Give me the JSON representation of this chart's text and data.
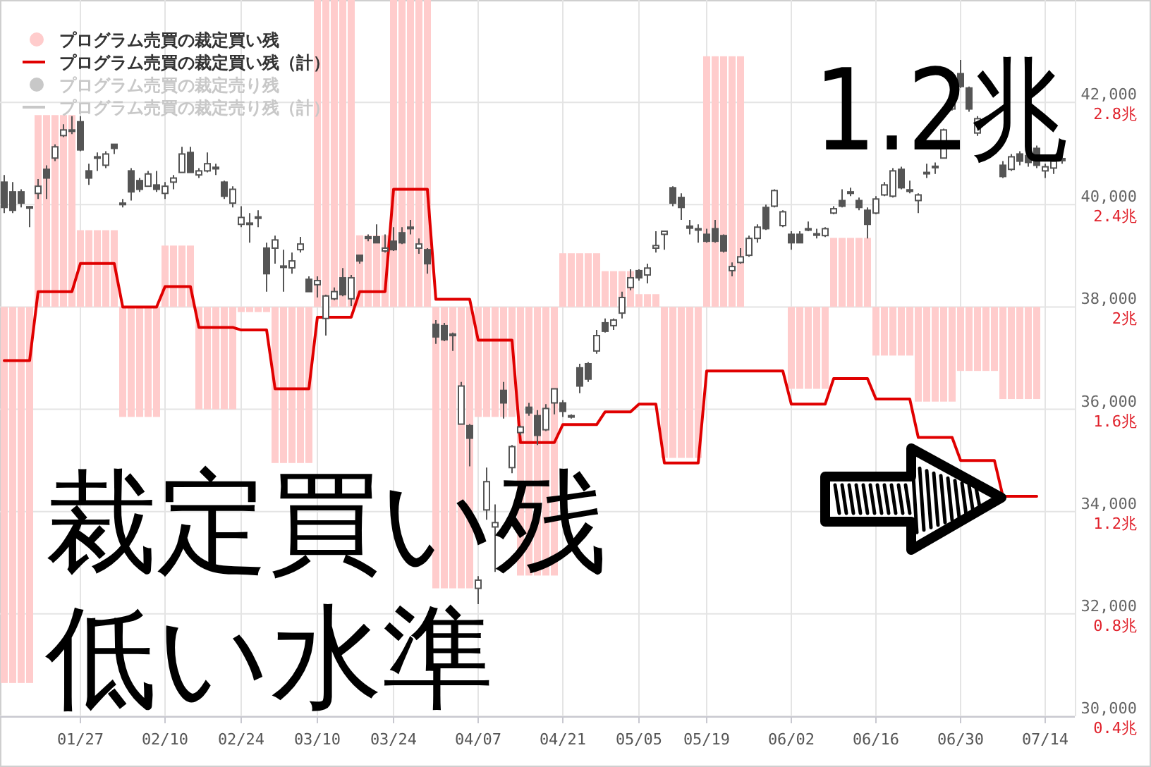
{
  "chart_data": {
    "type": "candlestick",
    "categories": [
      null,
      null,
      null,
      null,
      null,
      null,
      null,
      null,
      null,
      "01/27",
      null,
      null,
      null,
      null,
      null,
      null,
      null,
      null,
      null,
      "02/10",
      null,
      null,
      null,
      null,
      null,
      null,
      null,
      null,
      "02/24",
      null,
      null,
      null,
      null,
      null,
      null,
      null,
      null,
      "03/10",
      null,
      null,
      null,
      null,
      null,
      null,
      null,
      null,
      "03/24",
      null,
      null,
      null,
      null,
      null,
      null,
      null,
      null,
      null,
      "04/07",
      null,
      null,
      null,
      null,
      null,
      null,
      null,
      null,
      null,
      "04/21",
      null,
      null,
      null,
      null,
      null,
      null,
      null,
      null,
      "05/05",
      null,
      null,
      null,
      null,
      null,
      null,
      null,
      "05/19",
      null,
      null,
      null,
      null,
      null,
      null,
      null,
      null,
      null,
      "06/02",
      null,
      null,
      null,
      null,
      null,
      null,
      null,
      null,
      null,
      "06/16",
      null,
      null,
      null,
      null,
      null,
      null,
      null,
      null,
      null,
      "06/30",
      null,
      null,
      null,
      null,
      null,
      null,
      null,
      null,
      null,
      "07/14",
      null,
      null
    ],
    "ohlc": [
      [
        40440,
        40580,
        39835,
        39945
      ],
      [
        40250,
        40440,
        39835,
        39890
      ],
      [
        40250,
        40300,
        39945,
        40030
      ],
      [
        39960,
        39970,
        39560,
        39945
      ],
      [
        40220,
        40500,
        40110,
        40360
      ],
      [
        40690,
        40770,
        40110,
        40520
      ],
      [
        40910,
        41180,
        40850,
        41130
      ],
      [
        41350,
        41570,
        41320,
        41460
      ],
      [
        41460,
        41730,
        41380,
        41440
      ],
      [
        41620,
        41730,
        41045,
        41070
      ],
      [
        40660,
        40800,
        40385,
        40520
      ],
      [
        40920,
        41020,
        40660,
        40935
      ],
      [
        40770,
        41045,
        40715,
        40990
      ],
      [
        41180,
        41180,
        40990,
        41100
      ],
      [
        40030,
        40110,
        39945,
        40000
      ],
      [
        40660,
        40715,
        40080,
        40250
      ],
      [
        40470,
        40520,
        40250,
        40300
      ],
      [
        40360,
        40660,
        40360,
        40600
      ],
      [
        40385,
        40660,
        40250,
        40300
      ],
      [
        40220,
        40440,
        40110,
        40360
      ],
      [
        40440,
        40580,
        40300,
        40520
      ],
      [
        40630,
        41130,
        40630,
        40990
      ],
      [
        41020,
        41130,
        40630,
        40630
      ],
      [
        40580,
        40715,
        40520,
        40660
      ],
      [
        40660,
        41020,
        40630,
        40800
      ],
      [
        40730,
        40800,
        40580,
        40700
      ],
      [
        40440,
        40470,
        40110,
        40165
      ],
      [
        40030,
        40360,
        39945,
        40300
      ],
      [
        39615,
        39970,
        39560,
        39750
      ],
      [
        39615,
        39835,
        39255,
        39640
      ],
      [
        39760,
        39890,
        39560,
        39740
      ],
      [
        39150,
        39255,
        38300,
        38650
      ],
      [
        39150,
        39395,
        38845,
        39310
      ],
      [
        38790,
        39120,
        38300,
        38800
      ],
      [
        38765,
        39065,
        38650,
        38900
      ],
      [
        39120,
        39370,
        39065,
        39230
      ],
      [
        38540,
        38600,
        38300,
        38300
      ],
      [
        38435,
        38600,
        38185,
        38515
      ],
      [
        37775,
        38240,
        37440,
        38215
      ],
      [
        38160,
        38380,
        38130,
        38300
      ],
      [
        38570,
        38760,
        38210,
        38240
      ],
      [
        38160,
        38625,
        38020,
        38570
      ],
      [
        39010,
        39010,
        38845,
        38900
      ],
      [
        39370,
        39420,
        39285,
        39340
      ],
      [
        39370,
        39615,
        39255,
        39255
      ],
      [
        39095,
        39420,
        39065,
        39150
      ],
      [
        39285,
        39560,
        39095,
        39120
      ],
      [
        39450,
        39560,
        39230,
        39255
      ],
      [
        39560,
        39700,
        39420,
        39530
      ],
      [
        39150,
        39340,
        39040,
        39230
      ],
      [
        39120,
        39150,
        38650,
        38845
      ],
      [
        37660,
        37745,
        37280,
        37415
      ],
      [
        37635,
        37690,
        37330,
        37360
      ],
      [
        37470,
        37500,
        37140,
        37440
      ],
      [
        35710,
        36535,
        35710,
        36455
      ],
      [
        35680,
        35710,
        34885,
        35435
      ],
      [
        32500,
        32740,
        32190,
        32660
      ],
      [
        34033,
        34860,
        33840,
        34585
      ],
      [
        33700,
        34140,
        32820,
        33785
      ],
      [
        36370,
        36535,
        35820,
        36125
      ],
      [
        34860,
        35300,
        34750,
        35270
      ],
      [
        35545,
        35680,
        35490,
        35655
      ],
      [
        36040,
        36125,
        35875,
        35930
      ],
      [
        35875,
        35985,
        35300,
        35490
      ],
      [
        35600,
        36100,
        35575,
        36015
      ],
      [
        36125,
        36400,
        35900,
        36400
      ],
      [
        36125,
        36180,
        35850,
        35960
      ],
      [
        35850,
        35900,
        35820,
        35875
      ],
      [
        36810,
        36890,
        36315,
        36455
      ],
      [
        36890,
        36920,
        36535,
        36590
      ],
      [
        37140,
        37550,
        37085,
        37440
      ],
      [
        37690,
        37775,
        37500,
        37525
      ],
      [
        37635,
        37775,
        37550,
        37745
      ],
      [
        37880,
        38300,
        37775,
        38185
      ],
      [
        38380,
        38735,
        38325,
        38570
      ],
      [
        38710,
        38735,
        38515,
        38570
      ],
      [
        38625,
        38845,
        38460,
        38760
      ],
      [
        39150,
        39480,
        39065,
        39200
      ],
      [
        39420,
        39480,
        39120,
        39480
      ],
      [
        40330,
        40360,
        39970,
        40030
      ],
      [
        40140,
        40220,
        39700,
        39945
      ],
      [
        39580,
        39700,
        39420,
        39540
      ],
      [
        39530,
        39615,
        39255,
        39510
      ],
      [
        39420,
        39530,
        39255,
        39285
      ],
      [
        39530,
        39700,
        39255,
        39285
      ],
      [
        39395,
        39420,
        39065,
        39095
      ],
      [
        38710,
        38870,
        38600,
        38790
      ],
      [
        38870,
        39150,
        38845,
        38980
      ],
      [
        39010,
        39395,
        38980,
        39340
      ],
      [
        39340,
        39615,
        39255,
        39560
      ],
      [
        39945,
        40000,
        39505,
        39530
      ],
      [
        39970,
        40300,
        39945,
        40275
      ],
      [
        39590,
        39890,
        39560,
        39860
      ],
      [
        39420,
        39480,
        39120,
        39255
      ],
      [
        39420,
        39480,
        39255,
        39255
      ],
      [
        39505,
        39670,
        39480,
        39530
      ],
      [
        39430,
        39530,
        39340,
        39410
      ],
      [
        39395,
        39560,
        39365,
        39530
      ],
      [
        39835,
        39970,
        39810,
        39920
      ],
      [
        40080,
        40300,
        39945,
        39970
      ],
      [
        40250,
        40330,
        40165,
        40220
      ],
      [
        40080,
        40140,
        39890,
        39945
      ],
      [
        39890,
        39945,
        39340,
        39615
      ],
      [
        39835,
        40165,
        39810,
        40110
      ],
      [
        40190,
        40440,
        40165,
        40385
      ],
      [
        40165,
        40715,
        40140,
        40660
      ],
      [
        40690,
        40740,
        40300,
        40330
      ],
      [
        40290,
        40470,
        40220,
        40260
      ],
      [
        40080,
        40220,
        39835,
        40190
      ],
      [
        40630,
        40800,
        40520,
        40620
      ],
      [
        40750,
        40825,
        40600,
        40740
      ],
      [
        40910,
        41485,
        40910,
        41460
      ],
      [
        41870,
        42225,
        41840,
        42090
      ],
      [
        42560,
        42830,
        42280,
        42310
      ],
      [
        42280,
        42310,
        41815,
        41870
      ],
      [
        41400,
        41730,
        41345,
        41680
      ],
      null,
      null,
      [
        40770,
        40850,
        40520,
        40550
      ],
      [
        40690,
        40990,
        40660,
        40935
      ],
      [
        40990,
        41045,
        40770,
        40850
      ],
      [
        40960,
        41020,
        40740,
        40825
      ],
      [
        41100,
        41155,
        40715,
        40770
      ],
      [
        40660,
        40800,
        40520,
        40740
      ],
      [
        40715,
        40910,
        40600,
        40850
      ],
      [
        40900,
        41100,
        40800,
        40860
      ]
    ],
    "color": "#555555",
    "series": [
      {
        "type": "bar",
        "axis": "y2",
        "name": "プログラム売買の裁定買い残",
        "color": "#ffcccc",
        "base": [
          2,
          2,
          2,
          2,
          2,
          2,
          2,
          2,
          2,
          2,
          2,
          2,
          2,
          2,
          2,
          2,
          2,
          2,
          2,
          2,
          2,
          2,
          2,
          2,
          2,
          2,
          2,
          2,
          2,
          2,
          2,
          2,
          2,
          2,
          2,
          2,
          2,
          2,
          2,
          2,
          2,
          2,
          2,
          2,
          2,
          2,
          2,
          2,
          2,
          2,
          2,
          2,
          2,
          2,
          2,
          2,
          2,
          2,
          2,
          2,
          2,
          2,
          2,
          2,
          2,
          2,
          2,
          2,
          2,
          2,
          2,
          2,
          2,
          2,
          2,
          2,
          2,
          2,
          2,
          2,
          2,
          2,
          2,
          2,
          2,
          2,
          2,
          2,
          null,
          null,
          null,
          null,
          null,
          2,
          2,
          2,
          2,
          2,
          2,
          2,
          2,
          2,
          2,
          2,
          2,
          2,
          2,
          2,
          2,
          2,
          2,
          2,
          2,
          2,
          2,
          2,
          2,
          2,
          2,
          2,
          2,
          2,
          2,
          null,
          null,
          null
        ],
        "values": [
          -1.47,
          -1.47,
          -1.47,
          -1.47,
          0.75,
          0.75,
          0.75,
          0.75,
          0.75,
          0.3,
          0.3,
          0.3,
          0.3,
          0.3,
          -0.43,
          -0.43,
          -0.43,
          -0.43,
          -0.43,
          0.24,
          0.24,
          0.24,
          0.24,
          -0.4,
          -0.4,
          -0.4,
          -0.4,
          -0.4,
          -0.02,
          -0.02,
          -0.02,
          -0.02,
          -0.61,
          -0.61,
          -0.61,
          -0.61,
          -0.61,
          1.2,
          1.2,
          1.2,
          1.2,
          1.2,
          0.28,
          0.28,
          0.28,
          0.28,
          1.2,
          1.2,
          1.2,
          1.2,
          1.2,
          -1.1,
          -1.1,
          -1.1,
          -1.1,
          -1.1,
          -0.43,
          -0.43,
          -0.43,
          -0.43,
          -0.43,
          -1.05,
          -1.05,
          -1.05,
          -1.05,
          -1.05,
          0.21,
          0.21,
          0.21,
          0.21,
          0.21,
          0.14,
          0.14,
          0.14,
          0.14,
          0.05,
          0.05,
          0.05,
          -0.59,
          -0.59,
          -0.59,
          -0.59,
          -0.59,
          0.98,
          0.98,
          0.98,
          0.98,
          0.98,
          null,
          null,
          null,
          null,
          null,
          -0.32,
          -0.32,
          -0.32,
          -0.32,
          -0.32,
          0.27,
          0.27,
          0.27,
          0.27,
          0.27,
          -0.19,
          -0.19,
          -0.19,
          -0.19,
          -0.19,
          -0.37,
          -0.37,
          -0.37,
          -0.37,
          -0.37,
          -0.25,
          -0.25,
          -0.25,
          -0.25,
          -0.25,
          -0.36,
          -0.36,
          -0.36,
          -0.36,
          -0.36,
          null,
          null,
          null
        ]
      },
      {
        "type": "line",
        "axis": "y2",
        "name": "プログラム売買の裁定買い残（計）",
        "color": "#e00000",
        "values": [
          1.79,
          1.79,
          1.79,
          1.79,
          2.06,
          2.06,
          2.06,
          2.06,
          2.06,
          2.17,
          2.17,
          2.17,
          2.17,
          2.17,
          2.0,
          2.0,
          2.0,
          2.0,
          2.0,
          2.08,
          2.08,
          2.08,
          2.08,
          1.92,
          1.92,
          1.92,
          1.92,
          1.92,
          1.91,
          1.91,
          1.91,
          1.91,
          1.68,
          1.68,
          1.68,
          1.68,
          1.68,
          1.96,
          1.96,
          1.96,
          1.96,
          1.96,
          2.06,
          2.06,
          2.06,
          2.06,
          2.46,
          2.46,
          2.46,
          2.46,
          2.46,
          2.03,
          2.03,
          2.03,
          2.03,
          2.03,
          1.87,
          1.87,
          1.87,
          1.87,
          1.87,
          1.47,
          1.47,
          1.47,
          1.47,
          1.47,
          1.54,
          1.54,
          1.54,
          1.54,
          1.54,
          1.59,
          1.59,
          1.59,
          1.59,
          1.62,
          1.62,
          1.62,
          1.39,
          1.39,
          1.39,
          1.39,
          1.39,
          1.75,
          1.75,
          1.75,
          1.75,
          1.75,
          1.75,
          1.75,
          1.75,
          1.75,
          1.75,
          1.62,
          1.62,
          1.62,
          1.62,
          1.62,
          1.72,
          1.72,
          1.72,
          1.72,
          1.72,
          1.64,
          1.64,
          1.64,
          1.64,
          1.64,
          1.49,
          1.49,
          1.49,
          1.49,
          1.49,
          1.4,
          1.4,
          1.4,
          1.4,
          1.4,
          1.26,
          1.26,
          1.26,
          1.26,
          1.26,
          null,
          null,
          null
        ]
      },
      {
        "type": "bar",
        "axis": "y2",
        "name": "プログラム売買の裁定売り残",
        "color": "#c8c8c8",
        "values": [
          null,
          null,
          null,
          null,
          null,
          null,
          null,
          null,
          null,
          null,
          null,
          null,
          null,
          null,
          null,
          null,
          null,
          null,
          null,
          null,
          null,
          null,
          null,
          null,
          null,
          null,
          null,
          null,
          null,
          null,
          null,
          null,
          null,
          null,
          null,
          null,
          null,
          null,
          null,
          null,
          null,
          null,
          null,
          null,
          null,
          null,
          null,
          null,
          null,
          null,
          null,
          null,
          null,
          null,
          null,
          null,
          null,
          null,
          null,
          null,
          null,
          null,
          null,
          null,
          null,
          null,
          null,
          null,
          null,
          null,
          null,
          null,
          null,
          null,
          null,
          null,
          null,
          null,
          null,
          null,
          null,
          null,
          null,
          null,
          null,
          null,
          null,
          null,
          null,
          null,
          null,
          null,
          null,
          null,
          null,
          null,
          null,
          null,
          null,
          null,
          null,
          null,
          null,
          null,
          null,
          null,
          null,
          null,
          null,
          null,
          null,
          null,
          null,
          null,
          null,
          null,
          null,
          null,
          null,
          null,
          null,
          null,
          null,
          null,
          null,
          null
        ]
      },
      {
        "type": "line",
        "axis": "y2",
        "name": "プログラム売買の裁定売り残（計）",
        "color": "#c8c8c8",
        "values": [
          null,
          null,
          null,
          null,
          null,
          null,
          null,
          null,
          null,
          null,
          null,
          null,
          null,
          null,
          null,
          null,
          null,
          null,
          null,
          null,
          null,
          null,
          null,
          null,
          null,
          null,
          null,
          null,
          null,
          null,
          null,
          null,
          null,
          null,
          null,
          null,
          null,
          null,
          null,
          null,
          null,
          null,
          null,
          null,
          null,
          null,
          null,
          null,
          null,
          null,
          null,
          null,
          null,
          null,
          null,
          null,
          null,
          null,
          null,
          null,
          null,
          null,
          null,
          null,
          null,
          null,
          null,
          null,
          null,
          null,
          null,
          null,
          null,
          null,
          null,
          null,
          null,
          null,
          null,
          null,
          null,
          null,
          null,
          null,
          null,
          null,
          null,
          null,
          null,
          null,
          null,
          null,
          null,
          null,
          null,
          null,
          null,
          null,
          null,
          null,
          null,
          null,
          null,
          null,
          null,
          null,
          null,
          null,
          null,
          null,
          null,
          null,
          null,
          null,
          null,
          null,
          null,
          null,
          null,
          null,
          null,
          null,
          null,
          null,
          null,
          null
        ]
      }
    ],
    "ylim": [
      30000,
      44000
    ],
    "yticks": [
      {
        "value": 30000,
        "label": "30,000"
      },
      {
        "value": 32000,
        "label": "32,000"
      },
      {
        "value": 34000,
        "label": "34,000"
      },
      {
        "value": 36000,
        "label": "36,000"
      },
      {
        "value": 38000,
        "label": "38,000"
      },
      {
        "value": 40000,
        "label": "40,000"
      },
      {
        "value": 42000,
        "label": "42,000"
      }
    ],
    "y2lim": [
      0.4,
      3.2
    ],
    "y2ticks": [
      {
        "value": 0.4,
        "label": "0.4兆"
      },
      {
        "value": 0.8,
        "label": "0.8兆"
      },
      {
        "value": 1.2,
        "label": "1.2兆"
      },
      {
        "value": 1.6,
        "label": "1.6兆"
      },
      {
        "value": 2,
        "label": "2兆"
      },
      {
        "value": 2.4,
        "label": "2.4兆"
      },
      {
        "value": 2.8,
        "label": "2.8兆"
      }
    ],
    "grid": true,
    "legend": "top left",
    "annotations": [
      "1.2兆",
      "裁定買い残",
      "低い水準"
    ]
  }
}
